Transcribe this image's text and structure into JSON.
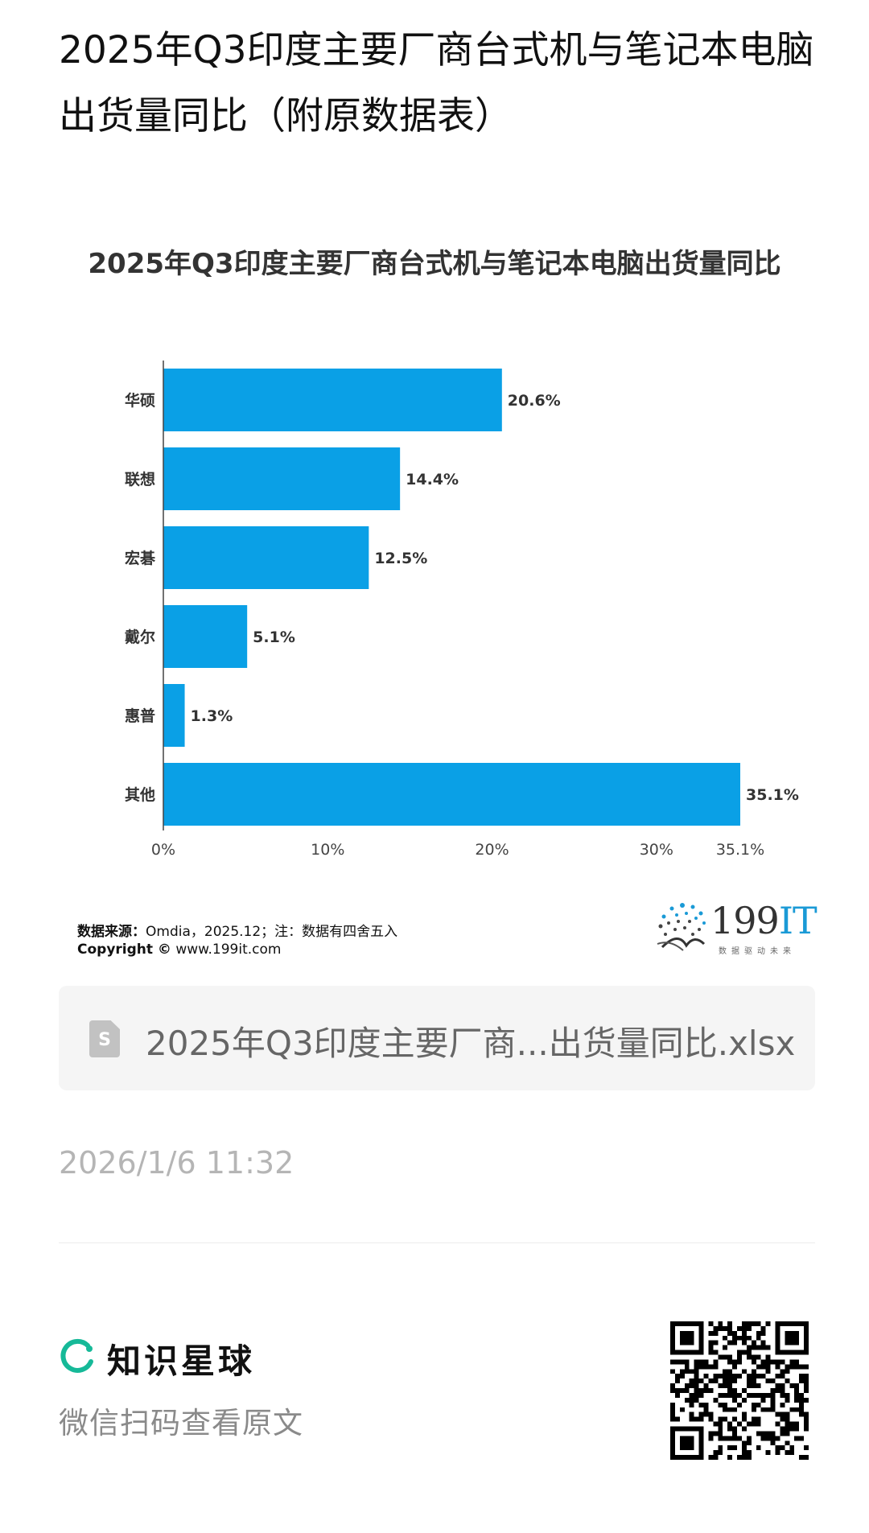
{
  "page": {
    "title": "2025年Q3印度主要厂商台式机与笔记本电脑出货量同比（附原数据表）"
  },
  "chart_data": {
    "type": "bar",
    "orientation": "horizontal",
    "title": "2025年Q3印度主要厂商台式机与笔记本电脑出货量同比",
    "categories": [
      "华硕",
      "联想",
      "宏碁",
      "戴尔",
      "惠普",
      "其他"
    ],
    "values": [
      20.6,
      14.4,
      12.5,
      5.1,
      1.3,
      35.1
    ],
    "value_labels": [
      "20.6%",
      "14.4%",
      "12.5%",
      "5.1%",
      "1.3%",
      "35.1%"
    ],
    "xticks": [
      "0%",
      "10%",
      "20%",
      "30%",
      "35.1%"
    ],
    "xtick_values": [
      0,
      10,
      20,
      30,
      35.1
    ],
    "xlim": [
      0,
      35.1
    ],
    "xlabel": "",
    "ylabel": "",
    "bar_color": "#0aa0e6",
    "grid": false,
    "legend": "none"
  },
  "source": {
    "label": "数据来源：",
    "text": "Omdia，2025.12；注：数据有四舍五入",
    "copyright_label": "Copyright ©",
    "copyright_url": "www.199it.com",
    "logo_text": "199",
    "logo_text_accent": "IT",
    "logo_tagline": "数据驱动未来"
  },
  "attachment": {
    "icon": "spreadsheet-file-icon",
    "icon_letter": "S",
    "filename": "2025年Q3印度主要厂商...出货量同比.xlsx"
  },
  "timestamp": "2026/1/6 11:32",
  "footer": {
    "brand_name": "知识星球",
    "scan_hint": "微信扫码查看原文",
    "brand_color": "#16b998"
  }
}
